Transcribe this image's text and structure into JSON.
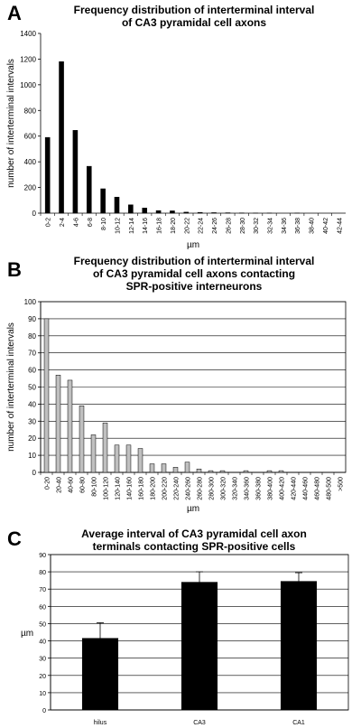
{
  "panels": [
    {
      "letter": "A",
      "title_lines": [
        "Frequency distribution of interterminal interval",
        "of CA3 pyramidal cell axons"
      ]
    },
    {
      "letter": "B",
      "title_lines": [
        "Frequency distribution of interterminal interval",
        "of CA3 pyramidal cell axons contacting",
        "SPR-positive interneurons"
      ]
    },
    {
      "letter": "C",
      "title_lines": [
        "Average interval of CA3 pyramidal cell axon",
        "terminals contacting SPR-positive cells"
      ]
    }
  ],
  "chart_data": [
    {
      "type": "bar",
      "title": "Frequency distribution of interterminal interval of CA3 pyramidal cell axons",
      "xlabel": "µm",
      "ylabel": "number of interterminal intervals",
      "ylim": [
        0,
        1400
      ],
      "yticks": [
        0,
        200,
        400,
        600,
        800,
        1000,
        1200,
        1400
      ],
      "grid": false,
      "bar_color": "#000000",
      "categories": [
        "0-2",
        "2-4",
        "4-6",
        "6-8",
        "8-10",
        "10-12",
        "12-14",
        "14-16",
        "16-18",
        "18-20",
        "20-22",
        "22-24",
        "24-26",
        "26-28",
        "28-30",
        "30-32",
        "32-34",
        "34-36",
        "36-38",
        "38-40",
        "40-42",
        "42-44"
      ],
      "values": [
        590,
        1180,
        645,
        365,
        190,
        125,
        65,
        40,
        20,
        18,
        8,
        6,
        4,
        3,
        2,
        1,
        1,
        0,
        1,
        0,
        0,
        0
      ]
    },
    {
      "type": "bar",
      "title": "Frequency distribution of interterminal interval of CA3 pyramidal cell axons contacting SPR-positive interneurons",
      "xlabel": "µm",
      "ylabel": "number of interterminal intervals",
      "ylim": [
        0,
        100
      ],
      "yticks": [
        0,
        10,
        20,
        30,
        40,
        50,
        60,
        70,
        80,
        90,
        100
      ],
      "grid": true,
      "bar_color": "#c0c0c0",
      "categories": [
        "0-20",
        "20-40",
        "40-60",
        "60-80",
        "80-100",
        "100-120",
        "120-140",
        "140-160",
        "160-180",
        "180-200",
        "200-220",
        "220-240",
        "240-260",
        "260-280",
        "280-300",
        "300-320",
        "320-340",
        "340-360",
        "360-380",
        "380-400",
        "400-420",
        "420-440",
        "440-460",
        "460-480",
        "480-500",
        ">500"
      ],
      "values": [
        90,
        57,
        54,
        39,
        22,
        29,
        16,
        16,
        14,
        5,
        5,
        3,
        6,
        2,
        1,
        1,
        0,
        1,
        0,
        1,
        1,
        0,
        0,
        0,
        0,
        0
      ]
    },
    {
      "type": "bar",
      "title": "Average interval of CA3 pyramidal cell axon terminals contacting SPR-positive cells",
      "xlabel": "",
      "ylabel": "µm",
      "ylim": [
        0,
        90
      ],
      "yticks": [
        0,
        10,
        20,
        30,
        40,
        50,
        60,
        70,
        80,
        90
      ],
      "grid": true,
      "bar_color": "#000000",
      "categories": [
        "hilus",
        "CA3",
        "CA1"
      ],
      "values": [
        41.5,
        74,
        74.5
      ],
      "error": [
        9,
        6,
        5
      ]
    }
  ]
}
